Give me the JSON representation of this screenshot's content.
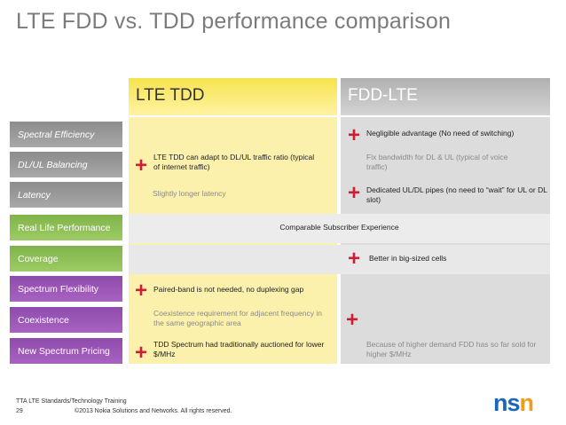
{
  "slide": {
    "title": "LTE FDD vs. TDD performance comparison",
    "columns": {
      "tdd": "LTE TDD",
      "fdd": "FDD-LTE"
    },
    "rows": [
      {
        "label": "Spectral Efficiency",
        "tdd": "",
        "fdd": "Negligible advantage (No need of switching)"
      },
      {
        "label": "DL/UL Balancing",
        "tdd": "LTE TDD can adapt to DL/UL traffic ratio (typical of internet traffic)",
        "fdd": "Fix bandwidth for DL & UL (typical of voice traffic)"
      },
      {
        "label": "Latency",
        "tdd": "Slightly longer latency",
        "fdd": "Dedicated UL/DL pipes (no need to “wait” for UL or DL slot)"
      },
      {
        "label": "Real Life Performance",
        "span": "Comparable Subscriber Experience"
      },
      {
        "label": "Coverage",
        "tdd": "",
        "fdd": "Better in big-sized cells"
      },
      {
        "label": "Spectrum Flexibility",
        "tdd": "Paired-band is not needed, no duplexing gap",
        "fdd": ""
      },
      {
        "label": "Coexistence",
        "tdd": "Coexistence requirement for adjacent frequency in the same geographic area",
        "fdd": ""
      },
      {
        "label": "New Spectrum Pricing",
        "tdd": "TDD Spectrum had traditionally auctioned for lower $/MHz",
        "fdd": "Because of higher demand FDD has so far sold for higher $/MHz"
      }
    ],
    "plus_symbol": "+",
    "footer": {
      "training": "TTA LTE Standards/Technology Training",
      "page": "29",
      "copyright": "©2013 Nokia Solutions and Networks. All rights reserved."
    },
    "logo": {
      "part1": "ns",
      "part2": "n"
    },
    "colors": {
      "plus": "#cc1f36",
      "logo_blue": "#1a66b8",
      "logo_orange": "#f39c1c"
    }
  }
}
